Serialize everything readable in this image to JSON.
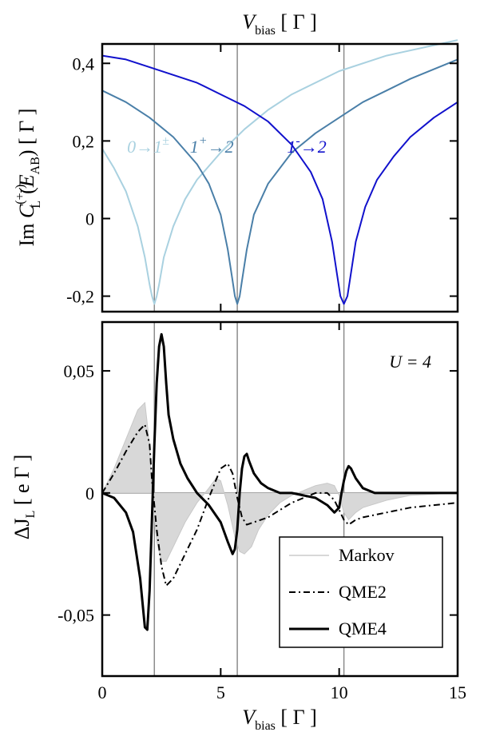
{
  "chart_data": [
    {
      "type": "line",
      "panel": "top",
      "top_axis_label": {
        "main": "V",
        "sub": "bias",
        "unit": " [ Γ ]"
      },
      "ylabel": {
        "pre": "Im ",
        "main": "C",
        "sub": "L",
        "sup": "(+-)",
        "arg_open": "(",
        "arg_main": "E",
        "arg_sub": "AB",
        "arg_close": ")",
        "unit": " [ Γ ]"
      },
      "xlim": [
        0,
        15
      ],
      "ylim": [
        -0.24,
        0.45
      ],
      "x_ticks": [
        0,
        5,
        10,
        15
      ],
      "y_ticks": [
        -0.2,
        0,
        0.2,
        0.4
      ],
      "y_tick_labels": [
        "-0,2",
        "0",
        "0,2",
        "0,4"
      ],
      "vertical_lines": [
        2.2,
        5.7,
        10.2
      ],
      "series": [
        {
          "name": "0→1±",
          "color": "#a9d1e0",
          "x": [
            0,
            0.5,
            1.0,
            1.5,
            1.8,
            2.0,
            2.1,
            2.2,
            2.3,
            2.4,
            2.6,
            3.0,
            3.5,
            4.0,
            5.0,
            6.0,
            7.0,
            8.0,
            10.0,
            12.0,
            15.0
          ],
          "y": [
            0.18,
            0.13,
            0.07,
            -0.02,
            -0.1,
            -0.17,
            -0.2,
            -0.22,
            -0.2,
            -0.17,
            -0.1,
            -0.02,
            0.05,
            0.1,
            0.17,
            0.23,
            0.28,
            0.32,
            0.38,
            0.42,
            0.46
          ]
        },
        {
          "name": "1⁺→2",
          "color": "#4a7fa8",
          "x": [
            0,
            1,
            2,
            3,
            4,
            4.5,
            5.0,
            5.3,
            5.5,
            5.6,
            5.7,
            5.8,
            5.9,
            6.1,
            6.4,
            7.0,
            8.0,
            9.0,
            10.0,
            11.0,
            12.0,
            13.0,
            14.0,
            15.0
          ],
          "y": [
            0.33,
            0.3,
            0.26,
            0.21,
            0.14,
            0.09,
            0.01,
            -0.08,
            -0.16,
            -0.2,
            -0.22,
            -0.2,
            -0.16,
            -0.08,
            0.01,
            0.09,
            0.17,
            0.22,
            0.26,
            0.3,
            0.33,
            0.36,
            0.385,
            0.41
          ]
        },
        {
          "name": "1⁻→2",
          "color": "#1111cc",
          "x": [
            0,
            1,
            2,
            3,
            4,
            5,
            6,
            7,
            8,
            8.8,
            9.3,
            9.7,
            9.9,
            10.05,
            10.2,
            10.35,
            10.5,
            10.7,
            11.1,
            11.6,
            12.3,
            13.0,
            14.0,
            15.0
          ],
          "y": [
            0.42,
            0.41,
            0.39,
            0.37,
            0.35,
            0.32,
            0.29,
            0.25,
            0.19,
            0.12,
            0.05,
            -0.06,
            -0.14,
            -0.2,
            -0.22,
            -0.2,
            -0.14,
            -0.06,
            0.03,
            0.1,
            0.16,
            0.21,
            0.26,
            0.3
          ]
        }
      ],
      "annotations": [
        {
          "text": "0→1",
          "sup": "±",
          "x": 1.05,
          "y": 0.17,
          "color": "#a9d1e0"
        },
        {
          "text": "1",
          "sup": "+",
          "tail": "→2",
          "x": 3.7,
          "y": 0.17,
          "color": "#4a7fa8"
        },
        {
          "text": "1",
          "sup": "-",
          "tail": "→2",
          "x": 7.8,
          "y": 0.17,
          "color": "#1111cc"
        }
      ]
    },
    {
      "type": "line",
      "panel": "bottom",
      "xlabel": {
        "main": "V",
        "sub": "bias",
        "unit": " [ Γ ]"
      },
      "ylabel": {
        "main": "ΔJ",
        "sub": "L",
        "unit": " [ e Γ ]"
      },
      "xlim": [
        0,
        15
      ],
      "ylim": [
        -0.075,
        0.07
      ],
      "x_ticks": [
        0,
        5,
        10,
        15
      ],
      "x_tick_labels": [
        "0",
        "5",
        "10",
        "15"
      ],
      "y_ticks": [
        -0.05,
        0,
        0.05
      ],
      "y_tick_labels": [
        "-0,05",
        "0",
        "0,05"
      ],
      "vertical_lines": [
        2.2,
        5.7,
        10.2
      ],
      "zero_line": true,
      "corner_label": "U = 4",
      "legend_position": "bottom-right",
      "series": [
        {
          "name": "Markov",
          "style": "filled",
          "color": "#d8d8d8",
          "x": [
            0,
            0.5,
            1.0,
            1.5,
            1.8,
            2.0,
            2.1,
            2.2,
            2.3,
            2.5,
            2.7,
            3.0,
            3.5,
            4.0,
            4.5,
            4.8,
            5.0,
            5.3,
            5.6,
            5.8,
            6.0,
            6.3,
            6.6,
            7.0,
            7.5,
            8.0,
            8.5,
            9.0,
            9.5,
            9.8,
            10.0,
            10.2,
            10.4,
            10.7,
            11.0,
            12.0,
            13.0,
            15.0
          ],
          "y": [
            0.0,
            0.01,
            0.022,
            0.034,
            0.037,
            0.02,
            0.0,
            -0.01,
            -0.02,
            -0.028,
            -0.028,
            -0.022,
            -0.012,
            -0.004,
            0.002,
            0.006,
            0.005,
            -0.005,
            -0.018,
            -0.024,
            -0.025,
            -0.022,
            -0.015,
            -0.009,
            -0.004,
            -0.001,
            0.001,
            0.003,
            0.004,
            0.003,
            -0.001,
            -0.008,
            -0.011,
            -0.008,
            -0.006,
            -0.003,
            -0.001,
            0.0
          ]
        },
        {
          "name": "QME2",
          "style": "dashdot",
          "color": "#000000",
          "x": [
            0,
            0.5,
            1.0,
            1.5,
            1.8,
            2.0,
            2.1,
            2.3,
            2.5,
            2.7,
            3.0,
            3.5,
            4.0,
            4.5,
            5.0,
            5.3,
            5.5,
            5.7,
            5.9,
            6.1,
            6.4,
            7.0,
            7.5,
            8.0,
            8.5,
            9.0,
            9.5,
            9.8,
            10.0,
            10.2,
            10.4,
            10.7,
            11.0,
            12.0,
            13.0,
            14.0,
            15.0
          ],
          "y": [
            0.0,
            0.008,
            0.017,
            0.025,
            0.028,
            0.02,
            0.005,
            -0.015,
            -0.03,
            -0.038,
            -0.035,
            -0.025,
            -0.015,
            -0.002,
            0.01,
            0.012,
            0.008,
            -0.002,
            -0.01,
            -0.013,
            -0.012,
            -0.01,
            -0.007,
            -0.004,
            -0.002,
            0.0,
            0.0,
            -0.003,
            -0.007,
            -0.011,
            -0.013,
            -0.011,
            -0.01,
            -0.008,
            -0.006,
            -0.005,
            -0.004
          ]
        },
        {
          "name": "QME4",
          "style": "solid",
          "color": "#000000",
          "x": [
            0,
            0.5,
            1.0,
            1.3,
            1.6,
            1.8,
            1.9,
            2.0,
            2.1,
            2.2,
            2.3,
            2.4,
            2.5,
            2.6,
            2.7,
            2.8,
            3.0,
            3.3,
            3.6,
            4.0,
            4.5,
            5.0,
            5.3,
            5.5,
            5.6,
            5.7,
            5.8,
            5.9,
            6.0,
            6.1,
            6.2,
            6.4,
            6.7,
            7.0,
            7.5,
            8.0,
            9.0,
            9.5,
            9.8,
            10.0,
            10.1,
            10.2,
            10.3,
            10.4,
            10.5,
            10.7,
            11.0,
            11.5,
            12.0,
            15.0
          ],
          "y": [
            0.0,
            -0.002,
            -0.008,
            -0.016,
            -0.035,
            -0.055,
            -0.056,
            -0.04,
            -0.01,
            0.02,
            0.045,
            0.06,
            0.065,
            0.06,
            0.045,
            0.032,
            0.022,
            0.012,
            0.006,
            0.0,
            -0.005,
            -0.012,
            -0.02,
            -0.025,
            -0.023,
            -0.015,
            0.0,
            0.01,
            0.015,
            0.016,
            0.013,
            0.008,
            0.004,
            0.002,
            0.0,
            0.0,
            -0.002,
            -0.005,
            -0.008,
            -0.006,
            0.0,
            0.005,
            0.009,
            0.011,
            0.01,
            0.006,
            0.002,
            0.0,
            0.0,
            0.0
          ]
        }
      ]
    }
  ]
}
